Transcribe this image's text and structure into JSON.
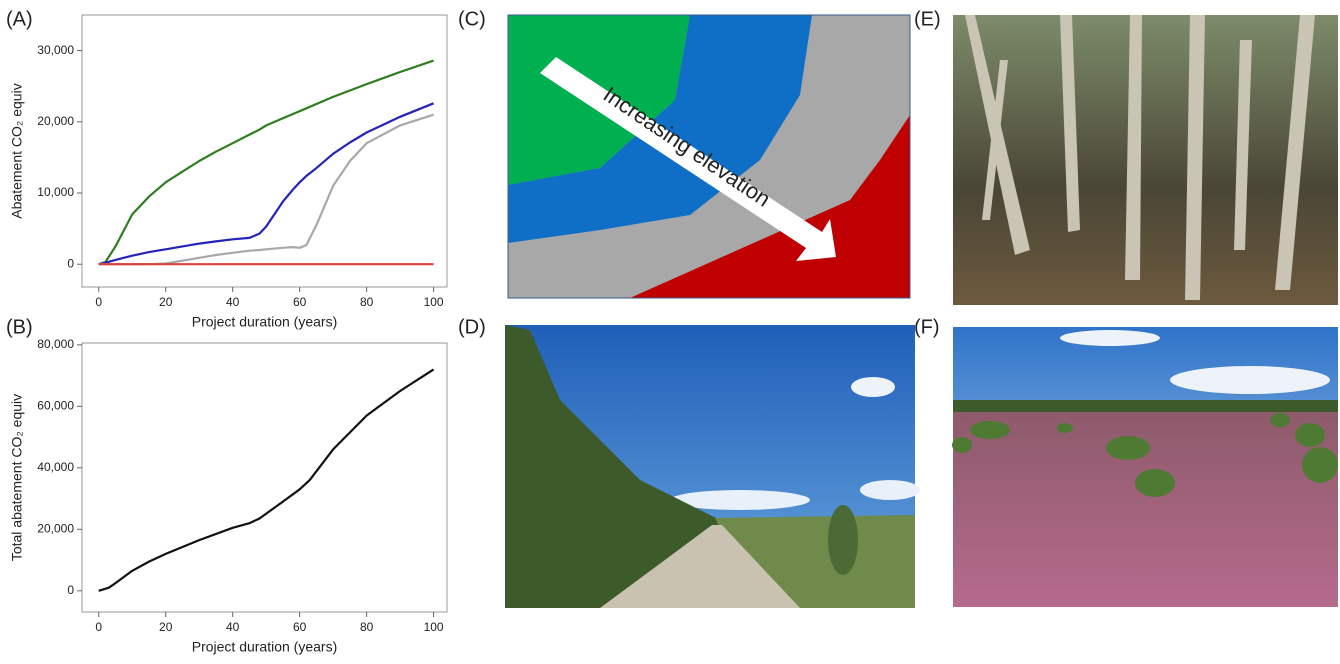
{
  "chart_data": [
    {
      "type": "line",
      "ylabel": "Abatement CO₂ equiv",
      "xlabel": "Project duration (years)",
      "x": [
        0,
        2,
        5,
        10,
        15,
        20,
        25,
        30,
        35,
        40,
        45,
        48,
        50,
        55,
        58,
        60,
        62,
        65,
        70,
        75,
        80,
        90,
        100
      ],
      "series": [
        {
          "color": "#2e7d1f",
          "values": [
            0,
            300,
            2500,
            7000,
            9500,
            11500,
            13000,
            14500,
            15800,
            17000,
            18200,
            18900,
            19500,
            20500,
            21100,
            21500,
            21900,
            22500,
            23500,
            24400,
            25300,
            27000,
            28600
          ]
        },
        {
          "color": "#2424b8",
          "values": [
            0,
            200,
            600,
            1200,
            1700,
            2100,
            2500,
            2900,
            3200,
            3500,
            3700,
            4300,
            5300,
            8800,
            10500,
            11500,
            12400,
            13500,
            15500,
            17100,
            18500,
            20700,
            22600
          ]
        },
        {
          "color": "#a8a8a8",
          "values": [
            0,
            0,
            0,
            0,
            0,
            100,
            500,
            900,
            1300,
            1600,
            1900,
            2000,
            2100,
            2300,
            2400,
            2300,
            2700,
            5500,
            11000,
            14500,
            17000,
            19500,
            21000
          ]
        },
        {
          "color": "#d9423a",
          "values": [
            0,
            0,
            0,
            0,
            0,
            0,
            0,
            0,
            0,
            0,
            0,
            0,
            0,
            0,
            0,
            0,
            0,
            0,
            0,
            0,
            0,
            0,
            0
          ]
        }
      ],
      "xlim": [
        -5,
        104
      ],
      "xticks": [
        0,
        20,
        40,
        60,
        80,
        100
      ],
      "ylim": [
        -3200,
        35000
      ],
      "yticks": [
        0,
        {
          "value": 10000,
          "label": "10,000"
        },
        {
          "value": 20000,
          "label": "20,000"
        },
        {
          "value": 30000,
          "label": "30,000"
        }
      ]
    },
    {
      "type": "line",
      "ylabel": "Total abatement CO₂ equiv",
      "xlabel": "Project duration (years)",
      "x": [
        0,
        3,
        5,
        10,
        15,
        20,
        30,
        40,
        45,
        48,
        55,
        60,
        63,
        70,
        80,
        90,
        100
      ],
      "series": [
        {
          "color": "#111111",
          "values": [
            0,
            1000,
            2500,
            6500,
            9500,
            12000,
            16500,
            20500,
            22000,
            23500,
            29000,
            33000,
            36000,
            46000,
            57000,
            65000,
            72000
          ]
        }
      ],
      "xlim": [
        -5,
        104
      ],
      "xticks": [
        0,
        20,
        40,
        60,
        80,
        100
      ],
      "ylim": [
        -6900,
        80600
      ],
      "yticks": [
        0,
        {
          "value": 20000,
          "label": "20,000"
        },
        {
          "value": 40000,
          "label": "40,000"
        },
        {
          "value": 60000,
          "label": "60,000"
        },
        {
          "value": 80000,
          "label": "80,000"
        }
      ]
    }
  ],
  "panels": {
    "labels": [
      "(A)",
      "(B)",
      "(C)",
      "(D)",
      "(E)",
      "(F)"
    ],
    "diagram_text": "Increasing elevation"
  }
}
